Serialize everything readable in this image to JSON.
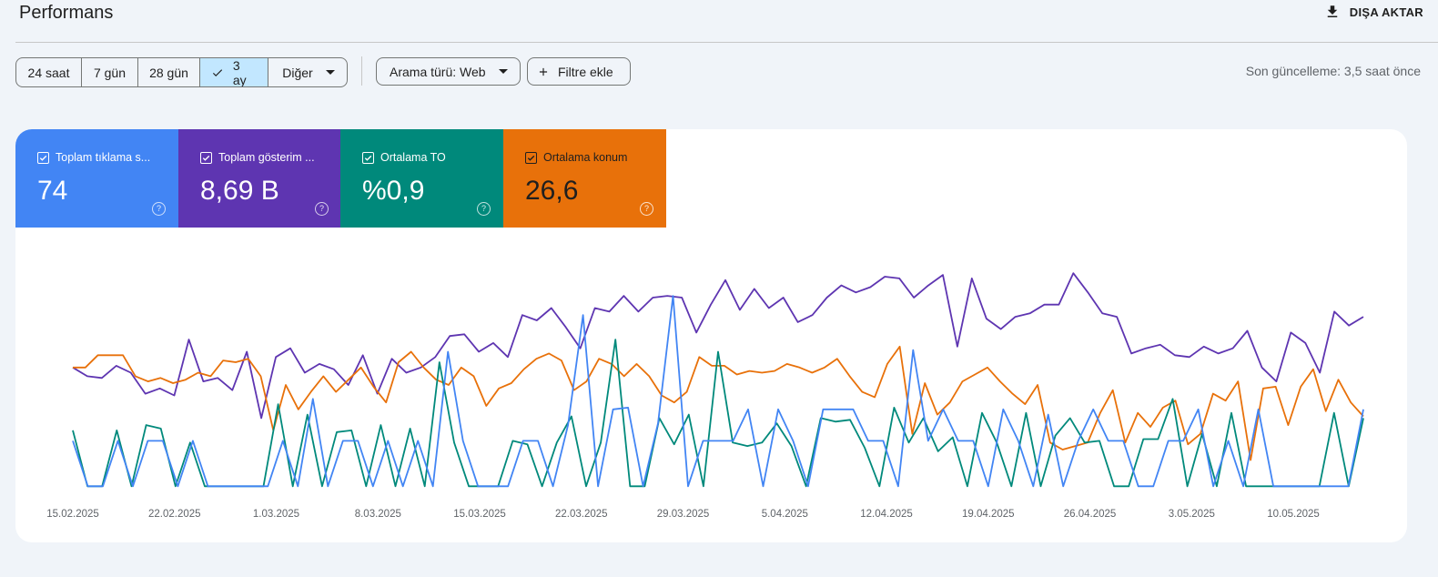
{
  "header": {
    "title": "Performans",
    "export_label": "DIŞA AKTAR",
    "export_icon": "download-icon"
  },
  "filters": {
    "ranges": [
      "24 saat",
      "7 gün",
      "28 gün",
      "3 ay",
      "Diğer"
    ],
    "selected_range": "3 ay",
    "search_type": "Arama türü: Web",
    "add_filter": "Filtre ekle",
    "last_updated": "Son güncelleme: 3,5 saat önce"
  },
  "metrics": [
    {
      "label": "Toplam tıklama s...",
      "value": "74",
      "color": "#4285f4",
      "checked": true
    },
    {
      "label": "Toplam gösterim ...",
      "value": "8,69 B",
      "color": "#5e35b1",
      "checked": true
    },
    {
      "label": "Ortalama TO",
      "value": "%0,9",
      "color": "#00897b",
      "checked": true
    },
    {
      "label": "Ortalama konum",
      "value": "26,6",
      "color": "#e8710a",
      "checked": true
    }
  ],
  "chart_data": {
    "type": "line",
    "x_labels": [
      "15.02.2025",
      "22.02.2025",
      "1.03.2025",
      "8.03.2025",
      "15.03.2025",
      "22.03.2025",
      "29.03.2025",
      "5.04.2025",
      "12.04.2025",
      "19.04.2025",
      "26.04.2025",
      "3.05.2025",
      "10.05.2025"
    ],
    "grid": false,
    "legend": "none",
    "normalized_scale": [
      0,
      1
    ],
    "series": [
      {
        "color": "#5e35b1",
        "values": [
          0.5,
          0.45,
          0.44,
          0.51,
          0.47,
          0.35,
          0.38,
          0.34,
          0.66,
          0.42,
          0.44,
          0.37,
          0.59,
          0.21,
          0.56,
          0.61,
          0.47,
          0.52,
          0.49,
          0.4,
          0.57,
          0.35,
          0.55,
          0.47,
          0.5,
          0.56,
          0.68,
          0.69,
          0.59,
          0.64,
          0.56,
          0.8,
          0.77,
          0.84,
          0.73,
          0.61,
          0.84,
          0.82,
          0.91,
          0.82,
          0.9,
          0.91,
          0.9,
          0.7,
          0.86,
          1.0,
          0.83,
          0.95,
          0.84,
          0.9,
          0.76,
          0.8,
          0.9,
          0.97,
          0.93,
          0.96,
          1.02,
          1.01,
          0.9,
          0.97,
          1.03,
          0.62,
          1.01,
          0.78,
          0.72,
          0.79,
          0.81,
          0.86,
          0.86,
          1.04,
          0.93,
          0.81,
          0.79,
          0.58,
          0.61,
          0.63,
          0.57,
          0.56,
          0.62,
          0.58,
          0.61,
          0.71,
          0.5,
          0.42,
          0.7,
          0.64,
          0.47,
          0.82,
          0.74,
          0.79
        ]
      },
      {
        "color": "#e8710a",
        "values": [
          0.5,
          0.5,
          0.57,
          0.57,
          0.57,
          0.45,
          0.42,
          0.44,
          0.41,
          0.43,
          0.47,
          0.45,
          0.54,
          0.53,
          0.55,
          0.45,
          0.14,
          0.4,
          0.26,
          0.36,
          0.45,
          0.36,
          0.43,
          0.5,
          0.39,
          0.3,
          0.53,
          0.59,
          0.5,
          0.43,
          0.4,
          0.5,
          0.45,
          0.28,
          0.38,
          0.41,
          0.49,
          0.55,
          0.58,
          0.54,
          0.37,
          0.42,
          0.55,
          0.52,
          0.45,
          0.52,
          0.45,
          0.34,
          0.3,
          0.36,
          0.56,
          0.51,
          0.51,
          0.46,
          0.48,
          0.47,
          0.48,
          0.52,
          0.5,
          0.47,
          0.5,
          0.55,
          0.45,
          0.36,
          0.33,
          0.52,
          0.62,
          0.12,
          0.41,
          0.23,
          0.3,
          0.42,
          0.46,
          0.5,
          0.42,
          0.35,
          0.29,
          0.4,
          0.07,
          0.03,
          0.05,
          0.07,
          0.24,
          0.37,
          0.07,
          0.24,
          0.16,
          0.27,
          0.31,
          0.06,
          0.12,
          0.35,
          0.31,
          0.42,
          -0.03,
          0.38,
          0.39,
          0.17,
          0.39,
          0.49,
          0.25,
          0.43,
          0.3,
          0.22
        ]
      },
      {
        "color": "#00897b",
        "values": [
          0.14,
          -0.18,
          -0.18,
          0.14,
          -0.18,
          0.17,
          0.15,
          -0.18,
          0.07,
          -0.18,
          -0.18,
          -0.18,
          -0.18,
          -0.18,
          0.29,
          -0.18,
          0.23,
          -0.18,
          0.13,
          0.14,
          -0.18,
          0.17,
          -0.18,
          0.15,
          -0.18,
          0.53,
          0.07,
          -0.18,
          -0.18,
          -0.18,
          0.08,
          0.06,
          -0.18,
          0.07,
          0.22,
          -0.18,
          0.07,
          0.66,
          -0.18,
          -0.18,
          0.21,
          0.06,
          0.23,
          -0.18,
          0.59,
          0.07,
          0.05,
          0.07,
          0.18,
          0.05,
          -0.18,
          0.21,
          0.19,
          0.2,
          0.04,
          -0.18,
          0.27,
          0.07,
          0.21,
          0.02,
          0.1,
          -0.18,
          0.24,
          0.07,
          -0.18,
          0.24,
          -0.18,
          0.11,
          0.21,
          0.07,
          0.08,
          -0.18,
          -0.18,
          0.09,
          0.09,
          0.32,
          -0.18,
          0.12,
          -0.18,
          0.24,
          -0.18,
          -0.18,
          -0.18,
          -0.18,
          -0.18,
          -0.18,
          0.24,
          -0.18,
          0.21
        ]
      },
      {
        "color": "#4285f4",
        "values": [
          0.08,
          -0.18,
          -0.18,
          0.08,
          -0.18,
          0.08,
          0.08,
          -0.18,
          0.08,
          -0.18,
          -0.18,
          -0.18,
          -0.18,
          -0.18,
          0.08,
          -0.18,
          0.32,
          -0.18,
          0.08,
          0.08,
          -0.18,
          0.08,
          -0.18,
          0.08,
          -0.18,
          0.59,
          0.08,
          -0.18,
          -0.18,
          -0.18,
          0.08,
          0.08,
          -0.18,
          0.17,
          0.8,
          -0.18,
          0.26,
          0.27,
          -0.18,
          0.18,
          0.91,
          -0.18,
          0.08,
          0.08,
          0.08,
          0.26,
          -0.18,
          0.26,
          0.08,
          -0.18,
          0.26,
          0.26,
          0.26,
          0.08,
          0.08,
          -0.18,
          0.6,
          0.08,
          0.26,
          0.08,
          0.08,
          -0.18,
          0.26,
          0.08,
          -0.18,
          0.23,
          -0.18,
          0.08,
          0.26,
          0.08,
          0.08,
          -0.18,
          -0.18,
          0.08,
          0.08,
          0.26,
          -0.18,
          0.08,
          -0.18,
          0.26,
          -0.18,
          -0.18,
          -0.18,
          -0.18,
          -0.18,
          -0.18,
          0.26
        ]
      }
    ]
  }
}
